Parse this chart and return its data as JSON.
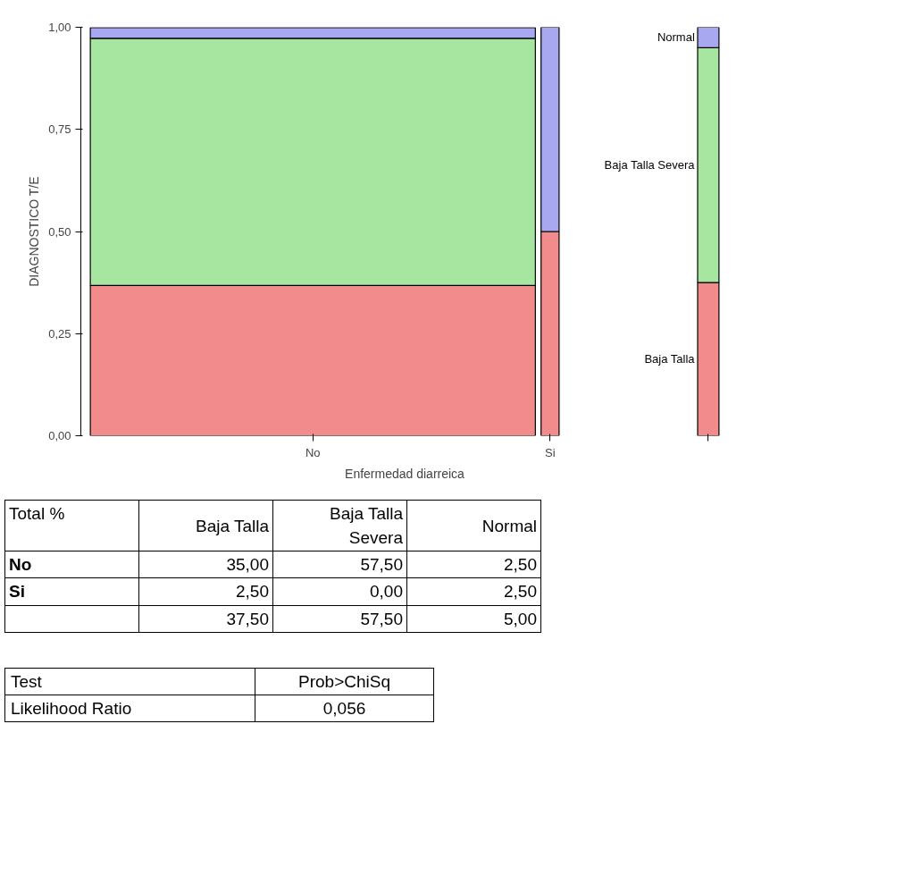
{
  "chart_data": [
    {
      "type": "bar",
      "stacked": true,
      "xlabel": "Enfermedad diarreica",
      "ylabel": "DIAGNOSTICO T/E",
      "categories": [
        "No",
        "Si",
        null
      ],
      "ylim": [
        0,
        1
      ],
      "yticks": [
        {
          "value": 0,
          "label": "0,00"
        },
        {
          "value": 0.25,
          "label": "0,25"
        },
        {
          "value": 0.5,
          "label": "0,50"
        },
        {
          "value": 0.75,
          "label": "0,75"
        },
        {
          "value": 1,
          "label": "1,00"
        }
      ],
      "series": [
        {
          "name": "Baja Talla",
          "color": "#f28b8b",
          "values": [
            0.368,
            0.5,
            0.375
          ]
        },
        {
          "name": "Baja Talla Severa",
          "color": "#a6e6a0",
          "values": [
            0.605,
            0,
            0.575
          ]
        },
        {
          "name": "Normal",
          "color": "#a8a8f0",
          "values": [
            0.026,
            0.5,
            0.05
          ]
        }
      ]
    },
    {
      "type": "other",
      "title": "Total %",
      "categories": [
        "Baja Talla",
        "Baja Talla Severa",
        "Normal"
      ],
      "series": [
        {
          "name": "No",
          "values": [
            35,
            57.5,
            2.5
          ],
          "value_labels": [
            "35,00",
            "57,50",
            "2,50"
          ]
        },
        {
          "name": "Si",
          "values": [
            2.5,
            0,
            2.5
          ],
          "value_labels": [
            "2,50",
            "0,00",
            "2,50"
          ]
        }
      ],
      "totals": [
        "37,50",
        "57,50",
        "5,00"
      ]
    },
    {
      "type": "other",
      "title": "Test",
      "categories": [
        "Prob>ChiSq"
      ],
      "series": [
        {
          "name": "Likelihood Ratio",
          "values": [
            0.056
          ],
          "value_labels": [
            "0,056"
          ]
        }
      ]
    }
  ]
}
